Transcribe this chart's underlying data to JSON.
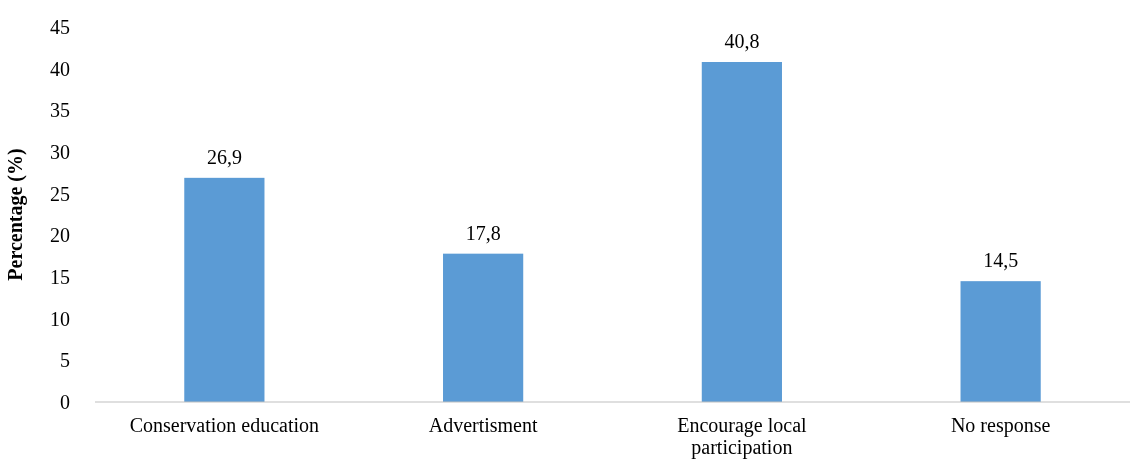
{
  "chart_data": {
    "type": "bar",
    "ylabel": "Percentage (%)",
    "categories": [
      "Conservation education",
      "Advertisment",
      "Encourage local participation",
      "No response"
    ],
    "values": [
      26.9,
      17.8,
      40.8,
      14.5
    ],
    "value_labels": [
      "26,9",
      "17,8",
      "40,8",
      "14,5"
    ],
    "color": "#5b9bd5",
    "ylim": [
      0,
      45
    ],
    "yticks": [
      0,
      5,
      10,
      15,
      20,
      25,
      30,
      35,
      40,
      45
    ]
  }
}
